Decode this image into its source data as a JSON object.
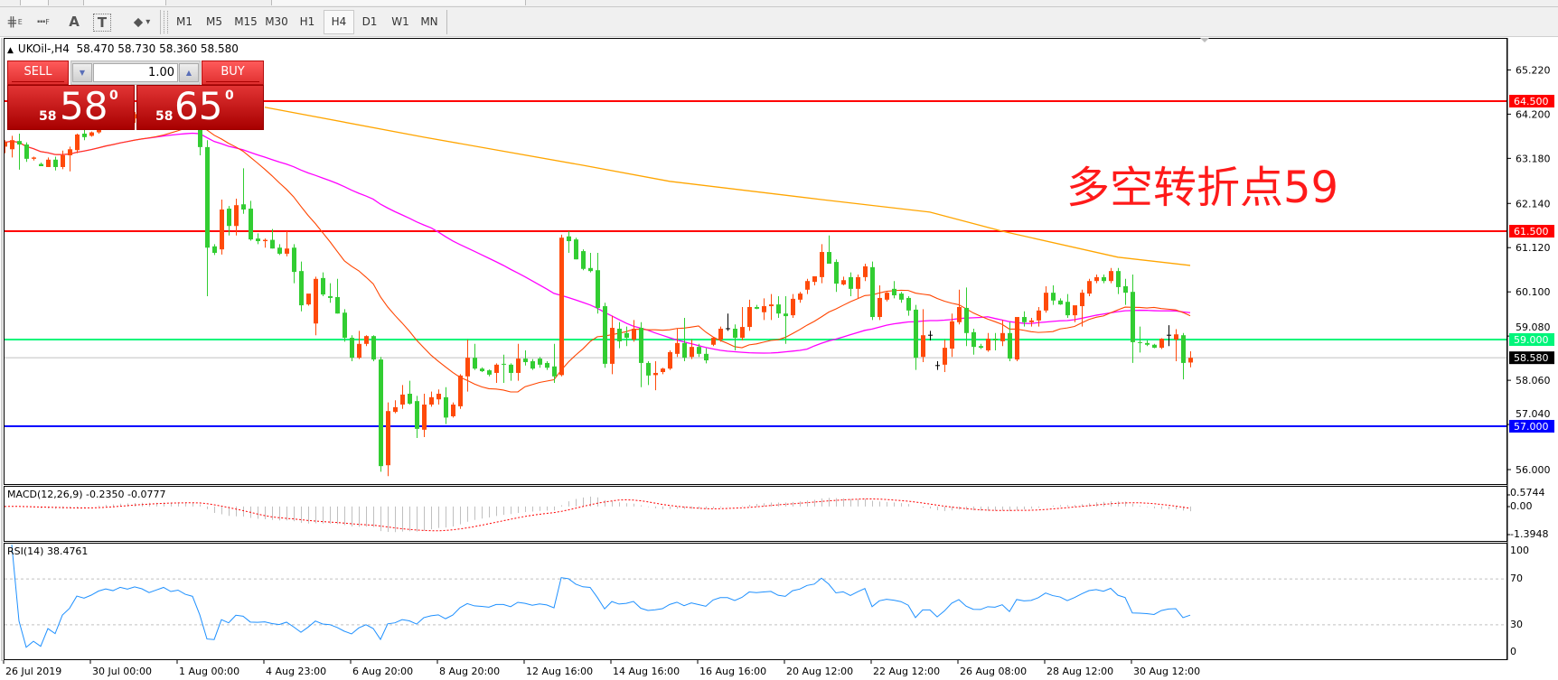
{
  "toolbar": {
    "tools": [
      {
        "icon": "fibonacci-expansion-icon",
        "glyph": "⋕",
        "sub": "E"
      },
      {
        "icon": "fibonacci-fan-icon",
        "glyph": "┅",
        "sub": "F"
      },
      {
        "icon": "text-tool-icon",
        "glyph": "A",
        "sub": ""
      },
      {
        "icon": "text-label-icon",
        "glyph": "T",
        "sub": ""
      },
      {
        "icon": "arrows-tool-icon",
        "glyph": "⬥",
        "sub": "▾"
      }
    ],
    "timeframes": [
      "M1",
      "M5",
      "M15",
      "M30",
      "H1",
      "H4",
      "D1",
      "W1",
      "MN"
    ],
    "active_timeframe": "H4"
  },
  "chart_header": {
    "symbol": "UKOil-,H4",
    "ohlc": "58.470 58.730 58.360 58.580"
  },
  "trade_panel": {
    "sell_label": "SELL",
    "buy_label": "BUY",
    "lot": "1.00",
    "sell_price": {
      "prefix": "58",
      "big": "58",
      "sup": "0"
    },
    "buy_price": {
      "prefix": "58",
      "big": "65",
      "sup": "0"
    },
    "color": "#d42a2a"
  },
  "annotation": "多空转折点59",
  "chart_data": [
    {
      "type": "candlestick",
      "symbol": "UKOil-",
      "timeframe": "H4",
      "colors": {
        "up": "#ff4a0a",
        "down": "#32cd32",
        "doji": "#000000",
        "ma_fast": "#ff4500",
        "ma_mid": "#ff00ff",
        "ma_slow": "#ffa500"
      },
      "x_ticks": [
        {
          "bar": 0,
          "label": "26 Jul 2019"
        },
        {
          "bar": 12,
          "label": "30 Jul 00:00"
        },
        {
          "bar": 24,
          "label": "1 Aug 00:00"
        },
        {
          "bar": 36,
          "label": "4 Aug 23:00"
        },
        {
          "bar": 48,
          "label": "6 Aug 20:00"
        },
        {
          "bar": 60,
          "label": "8 Aug 20:00"
        },
        {
          "bar": 72,
          "label": "12 Aug 16:00"
        },
        {
          "bar": 84,
          "label": "14 Aug 16:00"
        },
        {
          "bar": 96,
          "label": "16 Aug 16:00"
        },
        {
          "bar": 108,
          "label": "20 Aug 12:00"
        },
        {
          "bar": 120,
          "label": "22 Aug 12:00"
        },
        {
          "bar": 132,
          "label": "26 Aug 08:00"
        },
        {
          "bar": 144,
          "label": "28 Aug 12:00"
        },
        {
          "bar": 156,
          "label": "30 Aug 12:00"
        }
      ],
      "y_ticks": [
        "65.220",
        "64.200",
        "63.180",
        "62.140",
        "61.120",
        "60.100",
        "59.080",
        "58.060",
        "57.040",
        "56.000"
      ],
      "ylim": [
        55.6,
        65.8
      ],
      "levels": [
        {
          "value": 64.5,
          "label": "64.500",
          "color": "#ff0000",
          "text": "#ffffff"
        },
        {
          "value": 61.5,
          "label": "61.500",
          "color": "#ff0000",
          "text": "#ffffff"
        },
        {
          "value": 59.0,
          "label": "59.000",
          "color": "#00f57a",
          "text": "#ffffff"
        },
        {
          "value": 57.0,
          "label": "57.000",
          "color": "#0000ff",
          "text": "#ffffff"
        }
      ],
      "current_price": {
        "value": 58.58,
        "label": "58.580",
        "line_color": "#c0c0c0",
        "label_bg": "#000000"
      },
      "ma_slow_samples": [
        {
          "bar": 36,
          "value": 64.36
        },
        {
          "bar": 58,
          "value": 63.67
        },
        {
          "bar": 80,
          "value": 63.02
        },
        {
          "bar": 92,
          "value": 62.65
        },
        {
          "bar": 113,
          "value": 62.23
        },
        {
          "bar": 128,
          "value": 61.94
        },
        {
          "bar": 138,
          "value": 61.5
        },
        {
          "bar": 154,
          "value": 60.9
        },
        {
          "bar": 164,
          "value": 60.71
        }
      ],
      "candles": [
        [
          63.45,
          63.6,
          63.3,
          63.55
        ],
        [
          63.39,
          63.7,
          63.2,
          63.6
        ],
        [
          63.58,
          63.75,
          62.92,
          63.5
        ],
        [
          63.5,
          63.55,
          63.1,
          63.17
        ],
        [
          63.17,
          63.22,
          63.13,
          63.2
        ],
        [
          63.05,
          63.08,
          63.0,
          63.0
        ],
        [
          62.98,
          63.2,
          62.98,
          63.15
        ],
        [
          63.15,
          63.22,
          62.9,
          62.98
        ],
        [
          62.98,
          63.36,
          62.93,
          63.25
        ],
        [
          63.25,
          63.45,
          62.88,
          63.39
        ],
        [
          63.37,
          63.75,
          63.3,
          63.73
        ],
        [
          63.75,
          63.85,
          63.6,
          63.67
        ],
        [
          63.7,
          63.8,
          63.68,
          63.78
        ],
        [
          63.78,
          64.0,
          63.75,
          63.95
        ],
        [
          63.95,
          64.1,
          63.88,
          64.05
        ],
        [
          64.05,
          64.15,
          63.95,
          64.0
        ],
        [
          64.0,
          64.2,
          63.96,
          64.15
        ],
        [
          64.15,
          64.3,
          64.05,
          64.1
        ],
        [
          64.1,
          64.25,
          64.0,
          64.2
        ],
        [
          64.2,
          64.35,
          64.1,
          64.15
        ],
        [
          64.15,
          64.3,
          64.0,
          64.05
        ],
        [
          64.05,
          64.2,
          63.95,
          64.15
        ],
        [
          64.15,
          64.3,
          64.05,
          64.25
        ],
        [
          64.25,
          64.4,
          64.1,
          64.15
        ],
        [
          64.15,
          64.3,
          64.05,
          64.2
        ],
        [
          64.2,
          64.3,
          64.05,
          64.1
        ],
        [
          64.1,
          64.2,
          63.95,
          64.05
        ],
        [
          64.05,
          64.1,
          63.25,
          63.44
        ],
        [
          63.44,
          63.6,
          60.0,
          61.12
        ],
        [
          61.15,
          61.2,
          60.95,
          61.0
        ],
        [
          61.08,
          62.23,
          60.96,
          62.0
        ],
        [
          62.02,
          62.08,
          61.4,
          61.62
        ],
        [
          61.62,
          62.25,
          61.4,
          62.1
        ],
        [
          62.12,
          62.95,
          61.9,
          62.0
        ],
        [
          62.02,
          62.2,
          61.28,
          61.31
        ],
        [
          61.33,
          61.45,
          61.2,
          61.27
        ],
        [
          61.27,
          61.33,
          61.12,
          61.3
        ],
        [
          61.3,
          61.55,
          61.1,
          61.1
        ],
        [
          61.12,
          61.2,
          60.95,
          60.98
        ],
        [
          60.98,
          61.5,
          60.92,
          61.1
        ],
        [
          61.12,
          61.2,
          60.3,
          60.56
        ],
        [
          60.58,
          60.8,
          59.65,
          59.79
        ],
        [
          59.81,
          60.05,
          59.78,
          60.06
        ],
        [
          59.37,
          60.45,
          59.1,
          60.4
        ],
        [
          60.42,
          60.55,
          60.0,
          60.04
        ],
        [
          60.0,
          60.3,
          59.85,
          59.96
        ],
        [
          59.98,
          60.4,
          59.6,
          59.6
        ],
        [
          59.62,
          59.7,
          58.95,
          59.04
        ],
        [
          59.04,
          59.1,
          58.5,
          58.58
        ],
        [
          58.58,
          59.2,
          58.55,
          58.9
        ],
        [
          58.9,
          59.1,
          58.85,
          59.08
        ],
        [
          59.08,
          59.1,
          58.5,
          58.54
        ],
        [
          58.54,
          58.6,
          55.95,
          56.08
        ],
        [
          56.1,
          57.55,
          55.85,
          57.35
        ],
        [
          57.33,
          57.6,
          57.3,
          57.44
        ],
        [
          57.5,
          57.95,
          57.4,
          57.73
        ],
        [
          57.75,
          58.05,
          57.5,
          57.52
        ],
        [
          57.58,
          57.7,
          56.73,
          56.94
        ],
        [
          56.92,
          57.75,
          56.75,
          57.5
        ],
        [
          57.5,
          57.8,
          57.45,
          57.67
        ],
        [
          57.62,
          57.85,
          57.5,
          57.75
        ],
        [
          57.67,
          57.9,
          57.05,
          57.2
        ],
        [
          57.23,
          57.55,
          57.2,
          57.5
        ],
        [
          57.46,
          58.2,
          57.4,
          58.17
        ],
        [
          58.15,
          59.0,
          57.8,
          58.58
        ],
        [
          58.58,
          58.9,
          58.3,
          58.33
        ],
        [
          58.33,
          58.36,
          58.25,
          58.27
        ],
        [
          58.29,
          58.31,
          58.15,
          58.19
        ],
        [
          58.23,
          58.45,
          58.0,
          58.42
        ],
        [
          58.44,
          58.65,
          58.0,
          58.42
        ],
        [
          58.42,
          58.45,
          58.05,
          58.23
        ],
        [
          58.23,
          58.9,
          58.05,
          58.56
        ],
        [
          58.56,
          58.75,
          58.4,
          58.48
        ],
        [
          58.5,
          58.55,
          58.3,
          58.33
        ],
        [
          58.56,
          58.6,
          58.35,
          58.42
        ],
        [
          58.46,
          58.5,
          58.3,
          58.35
        ],
        [
          58.38,
          58.9,
          58.0,
          58.15
        ],
        [
          58.18,
          61.42,
          58.15,
          61.35
        ],
        [
          61.38,
          61.5,
          61.0,
          61.27
        ],
        [
          61.31,
          61.35,
          60.85,
          60.85
        ],
        [
          61.04,
          61.08,
          60.6,
          60.63
        ],
        [
          60.65,
          61.0,
          60.55,
          60.58
        ],
        [
          60.6,
          61.0,
          59.6,
          59.73
        ],
        [
          59.77,
          59.85,
          58.35,
          58.44
        ],
        [
          58.44,
          59.55,
          58.2,
          59.27
        ],
        [
          59.25,
          59.4,
          58.8,
          58.96
        ],
        [
          59.15,
          59.3,
          58.85,
          59.04
        ],
        [
          59.0,
          59.45,
          58.95,
          59.25
        ],
        [
          59.27,
          59.4,
          57.9,
          58.46
        ],
        [
          58.46,
          58.5,
          57.95,
          58.17
        ],
        [
          58.18,
          58.5,
          57.83,
          58.23
        ],
        [
          58.25,
          58.35,
          58.2,
          58.33
        ],
        [
          58.33,
          58.75,
          58.3,
          58.71
        ],
        [
          58.67,
          59.25,
          58.6,
          58.92
        ],
        [
          58.92,
          59.5,
          58.5,
          58.58
        ],
        [
          58.6,
          59.0,
          58.55,
          58.83
        ],
        [
          58.83,
          58.9,
          58.6,
          58.67
        ],
        [
          58.67,
          58.8,
          58.45,
          58.52
        ],
        [
          58.88,
          59.05,
          58.85,
          59.04
        ],
        [
          59.0,
          59.3,
          58.95,
          59.25
        ],
        [
          59.25,
          59.6,
          59.2,
          59.25
        ],
        [
          59.25,
          59.35,
          58.75,
          59.04
        ],
        [
          59.04,
          59.75,
          58.98,
          59.29
        ],
        [
          59.29,
          59.92,
          59.2,
          59.75
        ],
        [
          59.75,
          59.8,
          59.7,
          59.71
        ],
        [
          59.63,
          59.95,
          59.45,
          59.77
        ],
        [
          59.77,
          60.05,
          59.45,
          59.81
        ],
        [
          59.81,
          60.0,
          59.5,
          59.6
        ],
        [
          59.6,
          60.0,
          58.9,
          59.54
        ],
        [
          59.56,
          60.05,
          59.5,
          59.94
        ],
        [
          59.92,
          60.1,
          59.85,
          60.06
        ],
        [
          60.15,
          60.4,
          60.05,
          60.35
        ],
        [
          60.33,
          60.45,
          60.25,
          60.46
        ],
        [
          60.44,
          61.2,
          60.3,
          61.02
        ],
        [
          61.02,
          61.4,
          60.75,
          60.75
        ],
        [
          60.79,
          60.85,
          60.1,
          60.29
        ],
        [
          60.27,
          60.45,
          60.25,
          60.37
        ],
        [
          60.44,
          60.55,
          60.0,
          60.17
        ],
        [
          60.17,
          60.5,
          59.95,
          60.44
        ],
        [
          60.44,
          60.75,
          60.35,
          60.69
        ],
        [
          60.67,
          60.8,
          59.45,
          59.52
        ],
        [
          59.52,
          60.25,
          59.45,
          59.96
        ],
        [
          59.92,
          60.1,
          59.88,
          60.08
        ],
        [
          60.17,
          60.35,
          59.95,
          60.02
        ],
        [
          60.06,
          60.1,
          59.85,
          59.92
        ],
        [
          59.96,
          60.0,
          59.55,
          59.67
        ],
        [
          59.69,
          59.8,
          58.3,
          58.58
        ],
        [
          58.6,
          59.7,
          58.48,
          59.1
        ],
        [
          59.1,
          59.2,
          58.98,
          59.1
        ],
        [
          58.4,
          58.5,
          58.3,
          58.4
        ],
        [
          58.42,
          59.0,
          58.25,
          58.81
        ],
        [
          58.79,
          59.6,
          58.6,
          59.42
        ],
        [
          59.4,
          60.15,
          59.35,
          59.75
        ],
        [
          59.73,
          60.2,
          58.85,
          59.15
        ],
        [
          59.17,
          59.25,
          58.65,
          58.83
        ],
        [
          58.85,
          58.9,
          58.78,
          58.81
        ],
        [
          58.75,
          59.15,
          58.72,
          59.02
        ],
        [
          59.02,
          59.15,
          58.75,
          58.98
        ],
        [
          58.96,
          59.45,
          58.85,
          59.15
        ],
        [
          59.15,
          59.4,
          58.5,
          58.56
        ],
        [
          58.54,
          59.45,
          58.5,
          59.52
        ],
        [
          59.52,
          59.65,
          59.3,
          59.4
        ],
        [
          59.4,
          59.5,
          59.3,
          59.44
        ],
        [
          59.44,
          59.75,
          59.3,
          59.67
        ],
        [
          59.67,
          60.23,
          59.62,
          60.08
        ],
        [
          60.08,
          60.25,
          59.8,
          59.9
        ],
        [
          59.9,
          59.95,
          59.8,
          59.81
        ],
        [
          59.87,
          60.05,
          59.5,
          59.56
        ],
        [
          59.56,
          59.75,
          59.4,
          59.79
        ],
        [
          59.77,
          60.15,
          59.3,
          60.08
        ],
        [
          60.06,
          60.4,
          60.0,
          60.35
        ],
        [
          60.35,
          60.5,
          60.3,
          60.44
        ],
        [
          60.44,
          60.5,
          60.3,
          60.35
        ],
        [
          60.35,
          60.65,
          60.3,
          60.58
        ],
        [
          60.58,
          60.65,
          60.05,
          60.21
        ],
        [
          60.23,
          60.4,
          59.8,
          60.08
        ],
        [
          60.1,
          60.5,
          58.46,
          58.94
        ],
        [
          58.94,
          59.3,
          58.7,
          58.92
        ],
        [
          58.92,
          58.98,
          58.85,
          58.88
        ],
        [
          58.88,
          58.9,
          58.8,
          58.81
        ],
        [
          58.81,
          59.03,
          58.78,
          59.02
        ],
        [
          59.1,
          59.33,
          58.85,
          59.1
        ],
        [
          59.0,
          59.24,
          58.5,
          59.12
        ],
        [
          59.1,
          59.15,
          58.08,
          58.46
        ],
        [
          58.47,
          58.73,
          58.36,
          58.58
        ]
      ]
    },
    {
      "type": "macd",
      "label": "MACD(12,26,9) -0.2350 -0.0777",
      "y_ticks": [
        "0.5744",
        "0.00",
        "-1.3948"
      ],
      "ylim": [
        -1.3948,
        0.5744
      ],
      "histogram_color": "#c0c0c0",
      "signal_color": "#ff0000"
    },
    {
      "type": "line",
      "label": "RSI(14) 38.4761",
      "y_ticks": [
        "100",
        "70",
        "30",
        "0"
      ],
      "levels": [
        70,
        30
      ],
      "ylim": [
        0,
        100
      ],
      "line_color": "#1e90ff"
    }
  ]
}
